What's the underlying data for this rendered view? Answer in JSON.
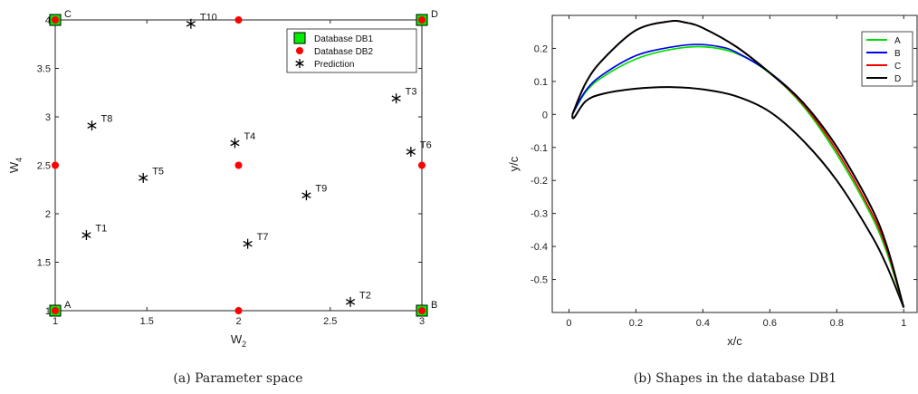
{
  "chart_data": [
    {
      "type": "scatter",
      "xlabel": "W",
      "xlabel_sub": "2",
      "ylabel": "W",
      "ylabel_sub": "4",
      "xlim": [
        1,
        3
      ],
      "ylim": [
        1,
        4
      ],
      "xticks": [
        "1",
        "1.5",
        "2",
        "2.5",
        "3"
      ],
      "xtick_values": [
        1,
        1.5,
        2,
        2.5,
        3
      ],
      "yticks": [
        "1",
        "1.5",
        "2",
        "2.5",
        "3",
        "3.5",
        "4"
      ],
      "ytick_values": [
        1,
        1.5,
        2,
        2.5,
        3,
        3.5,
        4
      ],
      "legend_position": "top-right",
      "legend": [
        {
          "name": "Database DB1",
          "marker": "square",
          "color": "#00ee00"
        },
        {
          "name": "Database DB2",
          "marker": "dot",
          "color": "#ff0000"
        },
        {
          "name": "Prediction",
          "marker": "star",
          "color": "#000000"
        }
      ],
      "db1": [
        {
          "label": "A",
          "x": 1,
          "y": 1
        },
        {
          "label": "B",
          "x": 3,
          "y": 1
        },
        {
          "label": "C",
          "x": 1,
          "y": 4
        },
        {
          "label": "D",
          "x": 3,
          "y": 4
        }
      ],
      "db2": [
        {
          "x": 1,
          "y": 1
        },
        {
          "x": 2,
          "y": 1
        },
        {
          "x": 3,
          "y": 1
        },
        {
          "x": 1,
          "y": 2.5
        },
        {
          "x": 2,
          "y": 2.5
        },
        {
          "x": 3,
          "y": 2.5
        },
        {
          "x": 1,
          "y": 4
        },
        {
          "x": 2,
          "y": 4
        },
        {
          "x": 3,
          "y": 4
        }
      ],
      "predictions": [
        {
          "label": "T1",
          "x": 1.17,
          "y": 1.78
        },
        {
          "label": "T2",
          "x": 2.61,
          "y": 1.09
        },
        {
          "label": "T3",
          "x": 2.86,
          "y": 3.19
        },
        {
          "label": "T4",
          "x": 1.98,
          "y": 2.73
        },
        {
          "label": "T5",
          "x": 1.48,
          "y": 2.37
        },
        {
          "label": "T6",
          "x": 2.94,
          "y": 2.64
        },
        {
          "label": "T7",
          "x": 2.05,
          "y": 1.69
        },
        {
          "label": "T8",
          "x": 1.2,
          "y": 2.91
        },
        {
          "label": "T9",
          "x": 2.37,
          "y": 2.19
        },
        {
          "label": "T10",
          "x": 1.74,
          "y": 3.96
        }
      ],
      "caption": "(a)  Parameter space"
    },
    {
      "type": "line",
      "xlabel": "x/c",
      "ylabel": "y/c",
      "xlim": [
        -0.05,
        1.04
      ],
      "ylim": [
        -0.6,
        0.3
      ],
      "xticks": [
        "0",
        "0.2",
        "0.4",
        "0.6",
        "0.8",
        "1"
      ],
      "xtick_values": [
        0,
        0.2,
        0.4,
        0.6,
        0.8,
        1
      ],
      "yticks": [
        "0.2",
        "0.1",
        "0",
        "-0.1",
        "-0.2",
        "-0.3",
        "-0.4",
        "-0.5"
      ],
      "ytick_values": [
        0.2,
        0.1,
        0,
        -0.1,
        -0.2,
        -0.3,
        -0.4,
        -0.5
      ],
      "legend_position": "top-right",
      "series": [
        {
          "name": "A",
          "color": "#00dd00",
          "points": [
            [
              0.01,
              0.0
            ],
            [
              0.05,
              0.068
            ],
            [
              0.1,
              0.113
            ],
            [
              0.2,
              0.168
            ],
            [
              0.3,
              0.196
            ],
            [
              0.4,
              0.205
            ],
            [
              0.5,
              0.185
            ],
            [
              0.6,
              0.125
            ],
            [
              0.7,
              0.025
            ],
            [
              0.8,
              -0.12
            ],
            [
              0.9,
              -0.3
            ],
            [
              0.95,
              -0.42
            ],
            [
              1.0,
              -0.585
            ]
          ]
        },
        {
          "name": "B",
          "color": "#0000ee",
          "points": [
            [
              0.01,
              0.0
            ],
            [
              0.05,
              0.072
            ],
            [
              0.1,
              0.12
            ],
            [
              0.2,
              0.178
            ],
            [
              0.3,
              0.203
            ],
            [
              0.38,
              0.212
            ],
            [
              0.45,
              0.205
            ],
            [
              0.5,
              0.188
            ],
            [
              0.6,
              0.127
            ],
            [
              0.7,
              0.035
            ],
            [
              0.8,
              -0.098
            ],
            [
              0.9,
              -0.275
            ],
            [
              0.95,
              -0.4
            ],
            [
              1.0,
              -0.585
            ]
          ]
        },
        {
          "name": "C",
          "color": "#ee0000",
          "points": [
            [
              0.01,
              0.0
            ],
            [
              0.05,
              0.095
            ],
            [
              0.1,
              0.165
            ],
            [
              0.2,
              0.255
            ],
            [
              0.3,
              0.282
            ],
            [
              0.35,
              0.278
            ],
            [
              0.4,
              0.262
            ],
            [
              0.5,
              0.205
            ],
            [
              0.6,
              0.126
            ],
            [
              0.7,
              0.03
            ],
            [
              0.8,
              -0.11
            ],
            [
              0.9,
              -0.29
            ],
            [
              0.95,
              -0.41
            ],
            [
              1.0,
              -0.585
            ]
          ]
        },
        {
          "name": "D",
          "color": "#000000",
          "points": [
            [
              0.01,
              0.0
            ],
            [
              0.05,
              0.095
            ],
            [
              0.1,
              0.165
            ],
            [
              0.2,
              0.255
            ],
            [
              0.3,
              0.282
            ],
            [
              0.35,
              0.278
            ],
            [
              0.4,
              0.262
            ],
            [
              0.5,
              0.205
            ],
            [
              0.6,
              0.126
            ],
            [
              0.7,
              0.035
            ],
            [
              0.8,
              -0.098
            ],
            [
              0.9,
              -0.275
            ],
            [
              0.95,
              -0.4
            ],
            [
              1.0,
              -0.585
            ]
          ]
        },
        {
          "name": "",
          "color": "#000000",
          "points": [
            [
              0.01,
              0.0
            ],
            [
              0.015,
              -0.01
            ],
            [
              0.05,
              0.04
            ],
            [
              0.1,
              0.062
            ],
            [
              0.2,
              0.078
            ],
            [
              0.3,
              0.083
            ],
            [
              0.4,
              0.076
            ],
            [
              0.5,
              0.055
            ],
            [
              0.6,
              0.008
            ],
            [
              0.7,
              -0.08
            ],
            [
              0.8,
              -0.2
            ],
            [
              0.9,
              -0.36
            ],
            [
              0.95,
              -0.46
            ],
            [
              1.0,
              -0.585
            ]
          ]
        }
      ],
      "caption": "(b)  Shapes in the database DB1"
    }
  ]
}
